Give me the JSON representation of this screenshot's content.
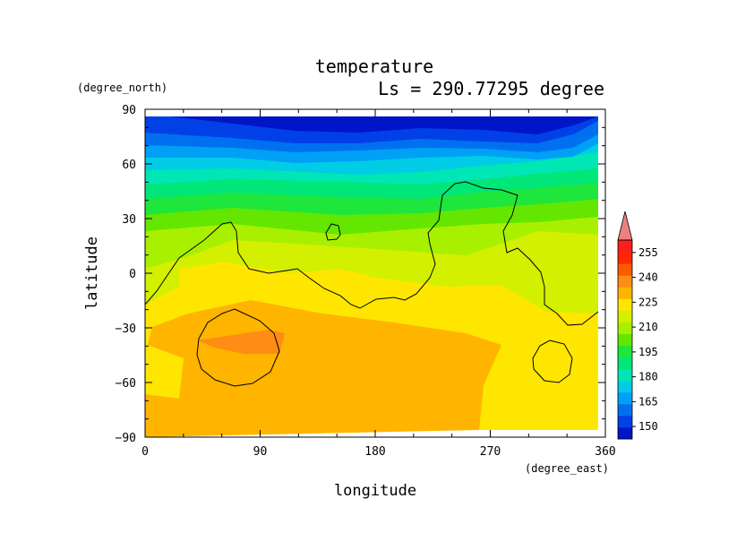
{
  "chart_data": {
    "type": "heatmap",
    "title": "temperature",
    "subtitle": "Ls = 290.77295 degree",
    "xlabel": "longitude",
    "ylabel": "latitude",
    "x_units": "(degree_east)",
    "y_units": "(degree_north)",
    "xlim": [
      0,
      360
    ],
    "ylim": [
      -90,
      90
    ],
    "x_ticks": [
      "0",
      "90",
      "180",
      "270",
      "360"
    ],
    "y_ticks": [
      "90",
      "60",
      "30",
      "0",
      "−30",
      "−60",
      "−90"
    ],
    "colorbar": {
      "levels": [
        142.5,
        150,
        157.5,
        165,
        172.5,
        180,
        187.5,
        195,
        202.5,
        210,
        217.5,
        225,
        232.5,
        240,
        247.5,
        255,
        262.5
      ],
      "tick_labels": [
        "150",
        "165",
        "180",
        "195",
        "210",
        "225",
        "240",
        "255"
      ],
      "colors": [
        "#0014c8",
        "#0040e6",
        "#0070f0",
        "#00a0f5",
        "#00cce6",
        "#00e6b4",
        "#00e678",
        "#1ee63c",
        "#64e600",
        "#a8f000",
        "#d2f000",
        "#ffe600",
        "#ffb400",
        "#ff8c14",
        "#ff5a00",
        "#ff2800",
        "#ff1e1e"
      ],
      "over_color": "#f08080"
    },
    "contour_lines": [
      {
        "label": "topography contour"
      }
    ]
  }
}
